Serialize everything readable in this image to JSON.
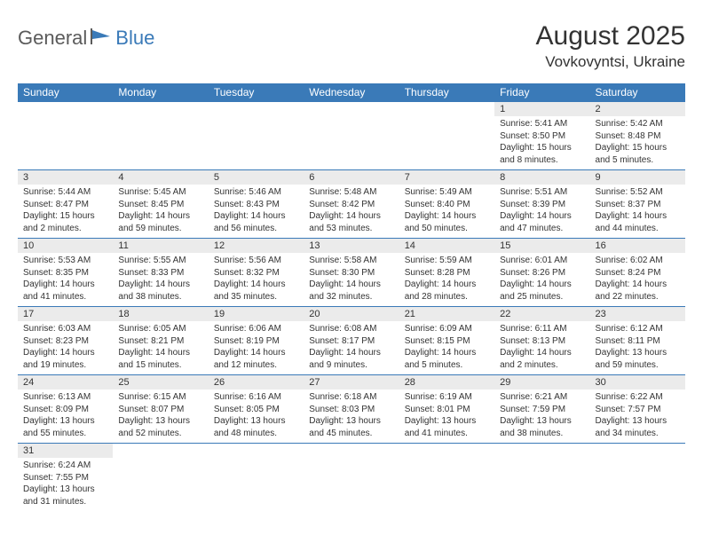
{
  "logo": {
    "part1": "General",
    "part2": "Blue"
  },
  "title": "August 2025",
  "location": "Vovkovyntsi, Ukraine",
  "colors": {
    "header_bg": "#3a7ab8",
    "header_text": "#ffffff",
    "daynum_bg": "#ebebeb",
    "border": "#3a7ab8",
    "text": "#333333",
    "logo_gray": "#5b5b5b",
    "logo_blue": "#3a7ab8"
  },
  "weekdays": [
    "Sunday",
    "Monday",
    "Tuesday",
    "Wednesday",
    "Thursday",
    "Friday",
    "Saturday"
  ],
  "weeks": [
    [
      null,
      null,
      null,
      null,
      null,
      {
        "n": "1",
        "sr": "Sunrise: 5:41 AM",
        "ss": "Sunset: 8:50 PM",
        "d1": "Daylight: 15 hours",
        "d2": "and 8 minutes."
      },
      {
        "n": "2",
        "sr": "Sunrise: 5:42 AM",
        "ss": "Sunset: 8:48 PM",
        "d1": "Daylight: 15 hours",
        "d2": "and 5 minutes."
      }
    ],
    [
      {
        "n": "3",
        "sr": "Sunrise: 5:44 AM",
        "ss": "Sunset: 8:47 PM",
        "d1": "Daylight: 15 hours",
        "d2": "and 2 minutes."
      },
      {
        "n": "4",
        "sr": "Sunrise: 5:45 AM",
        "ss": "Sunset: 8:45 PM",
        "d1": "Daylight: 14 hours",
        "d2": "and 59 minutes."
      },
      {
        "n": "5",
        "sr": "Sunrise: 5:46 AM",
        "ss": "Sunset: 8:43 PM",
        "d1": "Daylight: 14 hours",
        "d2": "and 56 minutes."
      },
      {
        "n": "6",
        "sr": "Sunrise: 5:48 AM",
        "ss": "Sunset: 8:42 PM",
        "d1": "Daylight: 14 hours",
        "d2": "and 53 minutes."
      },
      {
        "n": "7",
        "sr": "Sunrise: 5:49 AM",
        "ss": "Sunset: 8:40 PM",
        "d1": "Daylight: 14 hours",
        "d2": "and 50 minutes."
      },
      {
        "n": "8",
        "sr": "Sunrise: 5:51 AM",
        "ss": "Sunset: 8:39 PM",
        "d1": "Daylight: 14 hours",
        "d2": "and 47 minutes."
      },
      {
        "n": "9",
        "sr": "Sunrise: 5:52 AM",
        "ss": "Sunset: 8:37 PM",
        "d1": "Daylight: 14 hours",
        "d2": "and 44 minutes."
      }
    ],
    [
      {
        "n": "10",
        "sr": "Sunrise: 5:53 AM",
        "ss": "Sunset: 8:35 PM",
        "d1": "Daylight: 14 hours",
        "d2": "and 41 minutes."
      },
      {
        "n": "11",
        "sr": "Sunrise: 5:55 AM",
        "ss": "Sunset: 8:33 PM",
        "d1": "Daylight: 14 hours",
        "d2": "and 38 minutes."
      },
      {
        "n": "12",
        "sr": "Sunrise: 5:56 AM",
        "ss": "Sunset: 8:32 PM",
        "d1": "Daylight: 14 hours",
        "d2": "and 35 minutes."
      },
      {
        "n": "13",
        "sr": "Sunrise: 5:58 AM",
        "ss": "Sunset: 8:30 PM",
        "d1": "Daylight: 14 hours",
        "d2": "and 32 minutes."
      },
      {
        "n": "14",
        "sr": "Sunrise: 5:59 AM",
        "ss": "Sunset: 8:28 PM",
        "d1": "Daylight: 14 hours",
        "d2": "and 28 minutes."
      },
      {
        "n": "15",
        "sr": "Sunrise: 6:01 AM",
        "ss": "Sunset: 8:26 PM",
        "d1": "Daylight: 14 hours",
        "d2": "and 25 minutes."
      },
      {
        "n": "16",
        "sr": "Sunrise: 6:02 AM",
        "ss": "Sunset: 8:24 PM",
        "d1": "Daylight: 14 hours",
        "d2": "and 22 minutes."
      }
    ],
    [
      {
        "n": "17",
        "sr": "Sunrise: 6:03 AM",
        "ss": "Sunset: 8:23 PM",
        "d1": "Daylight: 14 hours",
        "d2": "and 19 minutes."
      },
      {
        "n": "18",
        "sr": "Sunrise: 6:05 AM",
        "ss": "Sunset: 8:21 PM",
        "d1": "Daylight: 14 hours",
        "d2": "and 15 minutes."
      },
      {
        "n": "19",
        "sr": "Sunrise: 6:06 AM",
        "ss": "Sunset: 8:19 PM",
        "d1": "Daylight: 14 hours",
        "d2": "and 12 minutes."
      },
      {
        "n": "20",
        "sr": "Sunrise: 6:08 AM",
        "ss": "Sunset: 8:17 PM",
        "d1": "Daylight: 14 hours",
        "d2": "and 9 minutes."
      },
      {
        "n": "21",
        "sr": "Sunrise: 6:09 AM",
        "ss": "Sunset: 8:15 PM",
        "d1": "Daylight: 14 hours",
        "d2": "and 5 minutes."
      },
      {
        "n": "22",
        "sr": "Sunrise: 6:11 AM",
        "ss": "Sunset: 8:13 PM",
        "d1": "Daylight: 14 hours",
        "d2": "and 2 minutes."
      },
      {
        "n": "23",
        "sr": "Sunrise: 6:12 AM",
        "ss": "Sunset: 8:11 PM",
        "d1": "Daylight: 13 hours",
        "d2": "and 59 minutes."
      }
    ],
    [
      {
        "n": "24",
        "sr": "Sunrise: 6:13 AM",
        "ss": "Sunset: 8:09 PM",
        "d1": "Daylight: 13 hours",
        "d2": "and 55 minutes."
      },
      {
        "n": "25",
        "sr": "Sunrise: 6:15 AM",
        "ss": "Sunset: 8:07 PM",
        "d1": "Daylight: 13 hours",
        "d2": "and 52 minutes."
      },
      {
        "n": "26",
        "sr": "Sunrise: 6:16 AM",
        "ss": "Sunset: 8:05 PM",
        "d1": "Daylight: 13 hours",
        "d2": "and 48 minutes."
      },
      {
        "n": "27",
        "sr": "Sunrise: 6:18 AM",
        "ss": "Sunset: 8:03 PM",
        "d1": "Daylight: 13 hours",
        "d2": "and 45 minutes."
      },
      {
        "n": "28",
        "sr": "Sunrise: 6:19 AM",
        "ss": "Sunset: 8:01 PM",
        "d1": "Daylight: 13 hours",
        "d2": "and 41 minutes."
      },
      {
        "n": "29",
        "sr": "Sunrise: 6:21 AM",
        "ss": "Sunset: 7:59 PM",
        "d1": "Daylight: 13 hours",
        "d2": "and 38 minutes."
      },
      {
        "n": "30",
        "sr": "Sunrise: 6:22 AM",
        "ss": "Sunset: 7:57 PM",
        "d1": "Daylight: 13 hours",
        "d2": "and 34 minutes."
      }
    ],
    [
      {
        "n": "31",
        "sr": "Sunrise: 6:24 AM",
        "ss": "Sunset: 7:55 PM",
        "d1": "Daylight: 13 hours",
        "d2": "and 31 minutes."
      },
      null,
      null,
      null,
      null,
      null,
      null
    ]
  ]
}
